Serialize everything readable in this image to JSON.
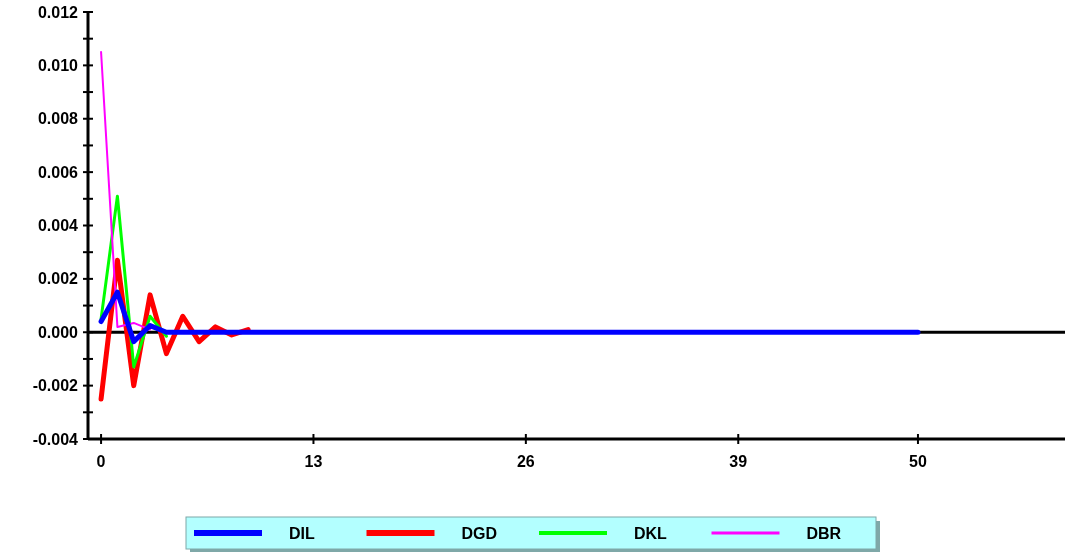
{
  "chart_data": {
    "type": "line",
    "x": [
      0,
      1,
      2,
      3,
      4,
      5,
      6,
      7,
      8,
      9,
      10,
      11,
      12,
      13,
      14,
      15,
      16,
      17,
      18,
      19,
      20,
      21,
      22,
      23,
      24,
      25,
      26,
      27,
      28,
      29,
      30,
      31,
      32,
      33,
      34,
      35,
      36,
      37,
      38,
      39,
      40,
      41,
      42,
      43,
      44,
      45,
      46,
      47,
      48,
      49,
      50
    ],
    "series": [
      {
        "name": "DIL",
        "color": "#0000ff",
        "values": [
          0.0004,
          0.0015,
          -0.00035,
          0.00025,
          0,
          0,
          0,
          0,
          0,
          0,
          0,
          0,
          0,
          0,
          0,
          0,
          0,
          0,
          0,
          0,
          0,
          0,
          0,
          0,
          0,
          0,
          0,
          0,
          0,
          0,
          0,
          0,
          0,
          0,
          0,
          0,
          0,
          0,
          0,
          0,
          0,
          0,
          0,
          0,
          0,
          0,
          0,
          0,
          0,
          0,
          0
        ]
      },
      {
        "name": "DGD",
        "color": "#ff0000",
        "values": [
          -0.0025,
          0.0027,
          -0.002,
          0.0014,
          -0.0008,
          0.0006,
          -0.00035,
          0.0002,
          -0.0001,
          0.0001,
          null,
          null,
          null,
          null,
          null,
          null,
          null,
          null,
          null,
          null,
          null,
          null,
          null,
          null,
          null,
          null,
          null,
          null,
          null,
          null,
          null,
          null,
          null,
          null,
          null,
          null,
          null,
          null,
          null,
          null,
          null,
          null,
          null,
          null,
          null,
          null,
          null,
          null,
          null,
          null,
          null
        ]
      },
      {
        "name": "DKL",
        "color": "#00ff00",
        "values": [
          0.0005,
          0.0051,
          -0.0013,
          0.0006,
          -0.00015,
          null,
          null,
          null,
          null,
          null,
          null,
          null,
          null,
          null,
          null,
          null,
          null,
          null,
          null,
          null,
          null,
          null,
          null,
          null,
          null,
          null,
          null,
          null,
          null,
          null,
          null,
          null,
          null,
          null,
          null,
          null,
          null,
          null,
          null,
          null,
          null,
          null,
          null,
          null,
          null,
          null,
          null,
          null,
          null,
          null,
          null
        ]
      },
      {
        "name": "DBR",
        "color": "#ff00ff",
        "values": [
          0.0105,
          0.0002,
          0.00035,
          0.0001,
          null,
          null,
          null,
          null,
          null,
          null,
          null,
          null,
          null,
          null,
          null,
          null,
          null,
          null,
          null,
          null,
          null,
          null,
          null,
          null,
          null,
          null,
          null,
          null,
          null,
          null,
          null,
          null,
          null,
          null,
          null,
          null,
          null,
          null,
          null,
          null,
          null,
          null,
          null,
          null,
          null,
          null,
          null,
          null,
          null,
          null,
          null
        ]
      }
    ],
    "xlim": [
      -0.8,
      59
    ],
    "xticks": [
      0,
      13,
      26,
      39,
      50
    ],
    "ylim": [
      -0.004,
      0.012
    ],
    "yticks": [
      {
        "value": -0.004,
        "label": "-0.004"
      },
      {
        "value": -0.003,
        "label": null
      },
      {
        "value": -0.002,
        "label": "-0.002"
      },
      {
        "value": -0.001,
        "label": null
      },
      {
        "value": 0,
        "label": "0.000"
      },
      {
        "value": 0.001,
        "label": null
      },
      {
        "value": 0.002,
        "label": "0.002"
      },
      {
        "value": 0.003,
        "label": null
      },
      {
        "value": 0.004,
        "label": "0.004"
      },
      {
        "value": 0.005,
        "label": null
      },
      {
        "value": 0.006,
        "label": "0.006"
      },
      {
        "value": 0.007,
        "label": null
      },
      {
        "value": 0.008,
        "label": "0.008"
      },
      {
        "value": 0.009,
        "label": null
      },
      {
        "value": 0.01,
        "label": "0.010"
      },
      {
        "value": 0.011,
        "label": null
      },
      {
        "value": 0.012,
        "label": "0.012"
      }
    ],
    "ref_lines": [
      {
        "axis": "y",
        "value": 0,
        "color": "#000000"
      }
    ],
    "legend": "bottom",
    "grid": false,
    "marker": "none",
    "line_style": "solid"
  }
}
